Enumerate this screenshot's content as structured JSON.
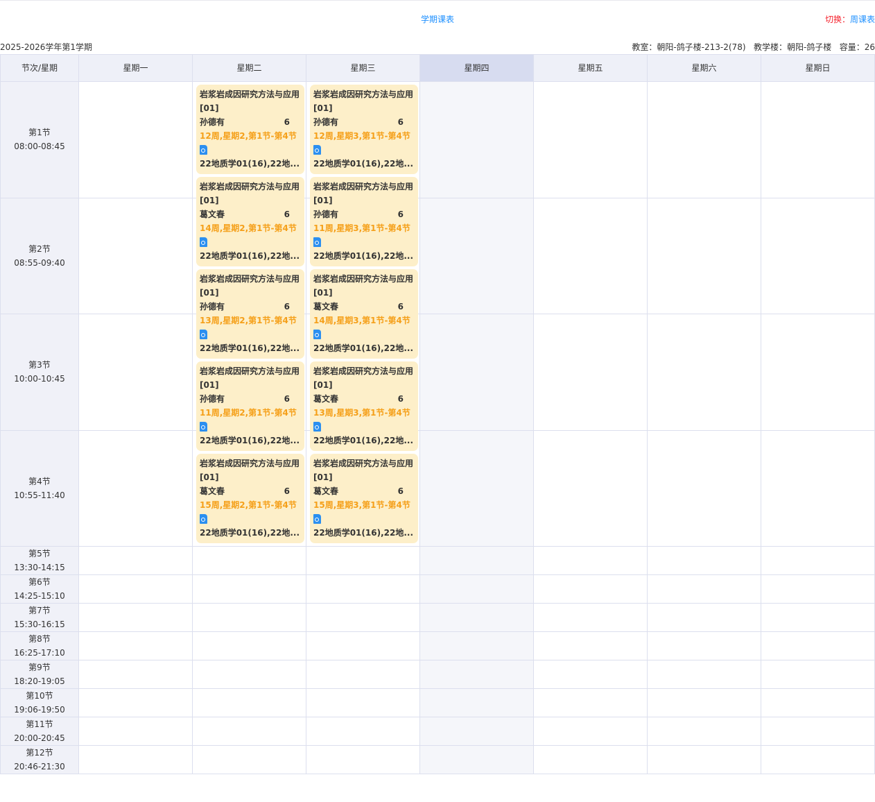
{
  "title": "学期课表",
  "switch": {
    "label": "切换：",
    "link": "周课表"
  },
  "term": "2025-2026学年第1学期",
  "info": "教室：朝阳-鸽子楼-213-2(78)   教学楼：朝阳-鸽子楼   容量：26",
  "header": [
    "节次/星期",
    "星期一",
    "星期二",
    "星期三",
    "星期四",
    "星期五",
    "星期六",
    "星期日"
  ],
  "highlight_day": "星期四",
  "colors": {
    "card_bg": "#fdefc9",
    "week_text": "#f5a01a",
    "link": "#1e90ff",
    "switch_label": "#f5222d"
  },
  "periods": [
    {
      "name": "第1节",
      "time": "08:00-08:45"
    },
    {
      "name": "第2节",
      "time": "08:55-09:40"
    },
    {
      "name": "第3节",
      "time": "10:00-10:45"
    },
    {
      "name": "第4节",
      "time": "10:55-11:40"
    },
    {
      "name": "第5节",
      "time": "13:30-14:15"
    },
    {
      "name": "第6节",
      "time": "14:25-15:10"
    },
    {
      "name": "第7节",
      "time": "15:30-16:15"
    },
    {
      "name": "第8节",
      "time": "16:25-17:10"
    },
    {
      "name": "第9节",
      "time": "18:20-19:05"
    },
    {
      "name": "第10节",
      "time": "19:06-19:50"
    },
    {
      "name": "第11节",
      "time": "20:00-20:45"
    },
    {
      "name": "第12节",
      "time": "20:46-21:30"
    }
  ],
  "courses": {
    "tuesday": [
      {
        "name": "岩浆岩成因研究方法与应用",
        "section": "[01]",
        "teacher": "孙德有",
        "count": "6",
        "schedule": "12周,星期2,第1节-第4节",
        "classes": "22地质学01(16),22地...",
        "icon": "file-search-icon"
      },
      {
        "name": "岩浆岩成因研究方法与应用",
        "section": "[01]",
        "teacher": "葛文春",
        "count": "6",
        "schedule": "14周,星期2,第1节-第4节",
        "classes": "22地质学01(16),22地...",
        "icon": "file-search-icon"
      },
      {
        "name": "岩浆岩成因研究方法与应用",
        "section": "[01]",
        "teacher": "孙德有",
        "count": "6",
        "schedule": "13周,星期2,第1节-第4节",
        "classes": "22地质学01(16),22地...",
        "icon": "file-search-icon"
      },
      {
        "name": "岩浆岩成因研究方法与应用",
        "section": "[01]",
        "teacher": "孙德有",
        "count": "6",
        "schedule": "11周,星期2,第1节-第4节",
        "classes": "22地质学01(16),22地...",
        "icon": "file-search-icon"
      },
      {
        "name": "岩浆岩成因研究方法与应用",
        "section": "[01]",
        "teacher": "葛文春",
        "count": "6",
        "schedule": "15周,星期2,第1节-第4节",
        "classes": "22地质学01(16),22地...",
        "icon": "file-search-icon"
      }
    ],
    "wednesday": [
      {
        "name": "岩浆岩成因研究方法与应用",
        "section": "[01]",
        "teacher": "孙德有",
        "count": "6",
        "schedule": "12周,星期3,第1节-第4节",
        "classes": "22地质学01(16),22地...",
        "icon": "file-search-icon"
      },
      {
        "name": "岩浆岩成因研究方法与应用",
        "section": "[01]",
        "teacher": "孙德有",
        "count": "6",
        "schedule": "11周,星期3,第1节-第4节",
        "classes": "22地质学01(16),22地...",
        "icon": "file-search-icon"
      },
      {
        "name": "岩浆岩成因研究方法与应用",
        "section": "[01]",
        "teacher": "葛文春",
        "count": "6",
        "schedule": "14周,星期3,第1节-第4节",
        "classes": "22地质学01(16),22地...",
        "icon": "file-search-icon"
      },
      {
        "name": "岩浆岩成因研究方法与应用",
        "section": "[01]",
        "teacher": "葛文春",
        "count": "6",
        "schedule": "13周,星期3,第1节-第4节",
        "classes": "22地质学01(16),22地...",
        "icon": "file-search-icon"
      },
      {
        "name": "岩浆岩成因研究方法与应用",
        "section": "[01]",
        "teacher": "葛文春",
        "count": "6",
        "schedule": "15周,星期3,第1节-第4节",
        "classes": "22地质学01(16),22地...",
        "icon": "file-search-icon"
      }
    ]
  }
}
